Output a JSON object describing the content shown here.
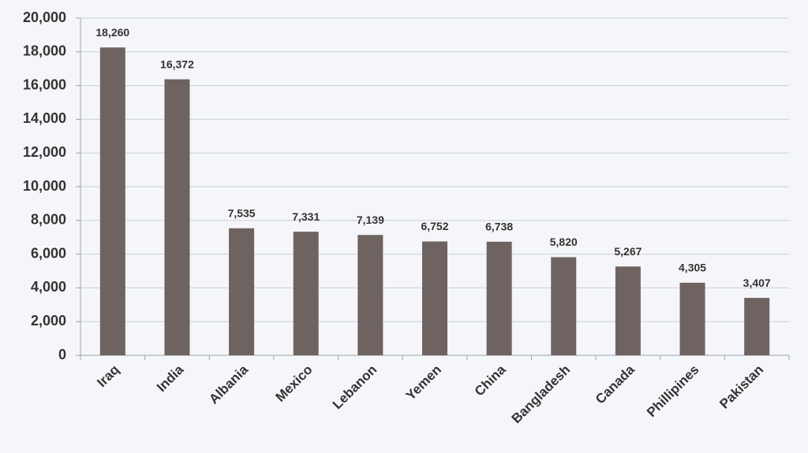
{
  "chart_data": {
    "type": "bar",
    "categories": [
      "Iraq",
      "India",
      "Albania",
      "Mexico",
      "Lebanon",
      "Yemen",
      "China",
      "Bangladesh",
      "Canada",
      "Phillipines",
      "Pakistan"
    ],
    "values": [
      18260,
      16372,
      7535,
      7331,
      7139,
      6752,
      6738,
      5820,
      5267,
      4305,
      3407
    ],
    "value_labels": [
      "18,260",
      "16,372",
      "7,535",
      "7,331",
      "7,139",
      "6,752",
      "6,738",
      "5,820",
      "5,267",
      "4,305",
      "3,407"
    ],
    "color": "#6e6360",
    "ylim": [
      0,
      20000
    ],
    "yticks": [
      0,
      {
        "value": 2000,
        "label": "2,000"
      },
      {
        "value": 4000,
        "label": "4,000"
      },
      {
        "value": 6000,
        "label": "6,000"
      },
      {
        "value": 8000,
        "label": "8,000"
      },
      {
        "value": 10000,
        "label": "10,000"
      },
      {
        "value": 12000,
        "label": "12,000"
      },
      {
        "value": 14000,
        "label": "14,000"
      },
      {
        "value": 16000,
        "label": "16,000"
      },
      {
        "value": 18000,
        "label": "18,000"
      },
      {
        "value": 20000,
        "label": "20,000"
      }
    ],
    "grid": true
  }
}
